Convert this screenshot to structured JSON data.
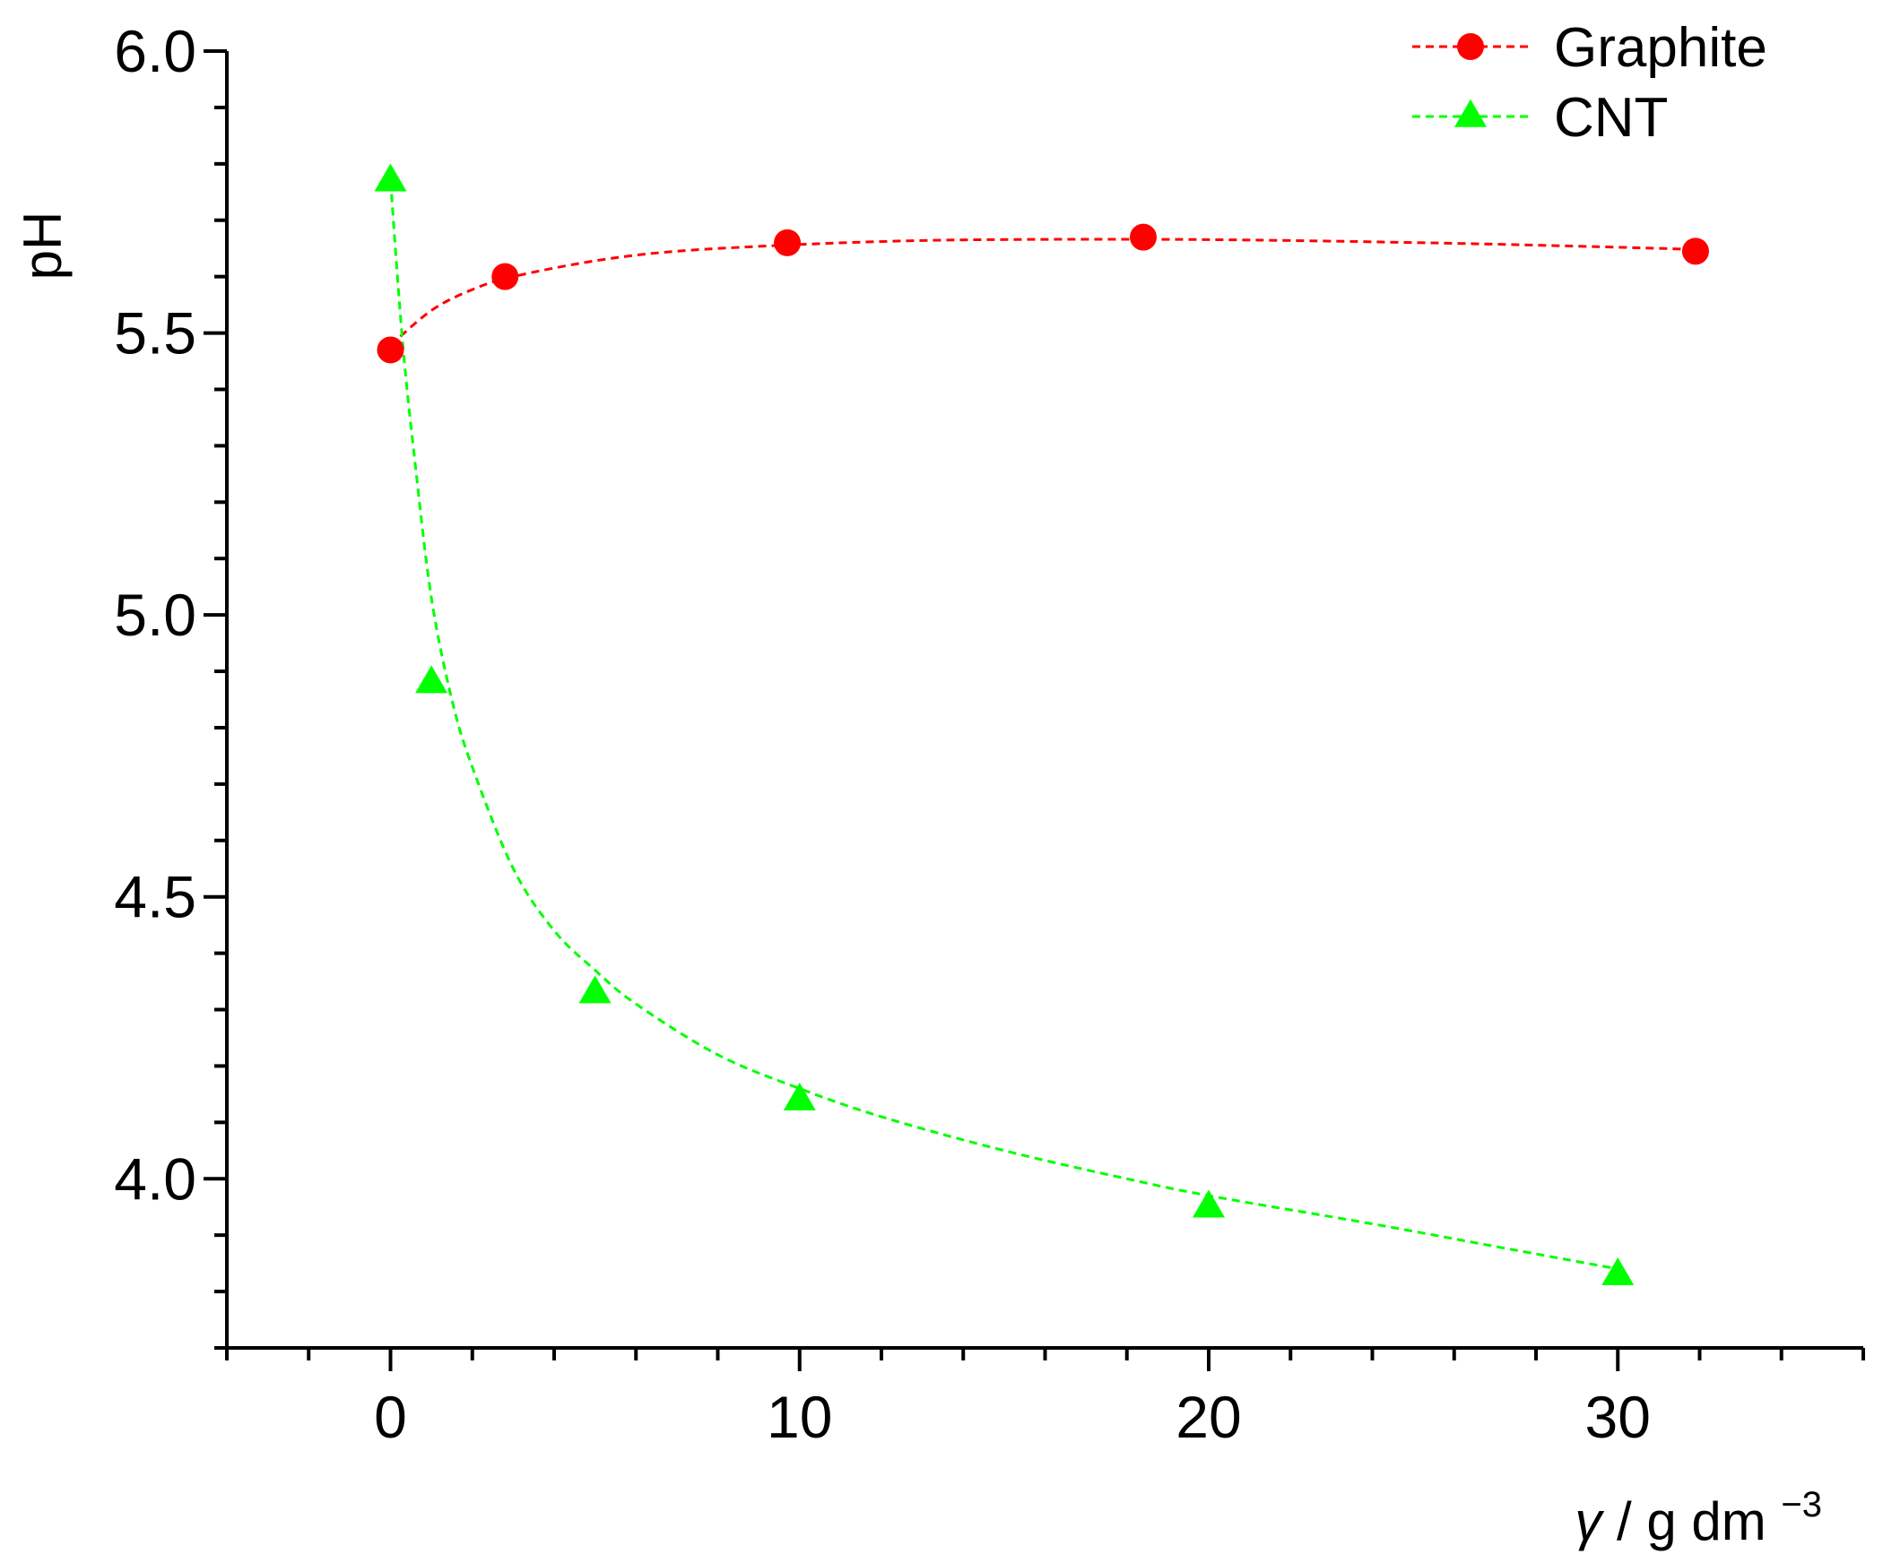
{
  "chart_data": {
    "type": "scatter",
    "xlabel": {
      "symbol": "γ",
      "text": "/ g dm",
      "exponent": "−3"
    },
    "ylabel": "pH",
    "xlim": [
      -4,
      36
    ],
    "ylim": [
      3.7,
      6.0
    ],
    "x_ticks": [
      0,
      10,
      20,
      30
    ],
    "y_ticks": [
      4.0,
      4.5,
      5.0,
      5.5,
      6.0
    ],
    "grid": false,
    "legend_position": "top-right",
    "series": [
      {
        "name": "Graphite",
        "marker": "circle",
        "color": "#ff0000",
        "points": [
          [
            0,
            5.47
          ],
          [
            2.8,
            5.6
          ],
          [
            9.7,
            5.66
          ],
          [
            18.4,
            5.67
          ],
          [
            31.9,
            5.645
          ]
        ],
        "fit": [
          [
            0,
            5.478
          ],
          [
            1,
            5.54
          ],
          [
            2,
            5.577
          ],
          [
            3,
            5.6
          ],
          [
            5,
            5.628
          ],
          [
            7,
            5.645
          ],
          [
            10,
            5.657
          ],
          [
            13,
            5.664
          ],
          [
            16,
            5.666
          ],
          [
            19,
            5.666
          ],
          [
            22,
            5.664
          ],
          [
            26,
            5.659
          ],
          [
            29,
            5.654
          ],
          [
            32,
            5.648
          ]
        ]
      },
      {
        "name": "CNT",
        "marker": "triangle",
        "color": "#00ff00",
        "points": [
          [
            0,
            5.77
          ],
          [
            1,
            4.88
          ],
          [
            5,
            4.33
          ],
          [
            10,
            4.14
          ],
          [
            20,
            3.95
          ],
          [
            30,
            3.83
          ]
        ],
        "fit": [
          [
            0,
            5.77
          ],
          [
            0.3,
            5.48
          ],
          [
            0.6,
            5.27
          ],
          [
            1,
            5.03
          ],
          [
            1.5,
            4.85
          ],
          [
            2,
            4.73
          ],
          [
            3,
            4.55
          ],
          [
            4,
            4.44
          ],
          [
            5,
            4.37
          ],
          [
            6,
            4.31
          ],
          [
            8,
            4.22
          ],
          [
            10,
            4.16
          ],
          [
            12,
            4.11
          ],
          [
            15,
            4.05
          ],
          [
            18,
            4.0
          ],
          [
            20,
            3.97
          ],
          [
            24,
            3.92
          ],
          [
            27,
            3.88
          ],
          [
            30,
            3.84
          ]
        ]
      }
    ]
  }
}
